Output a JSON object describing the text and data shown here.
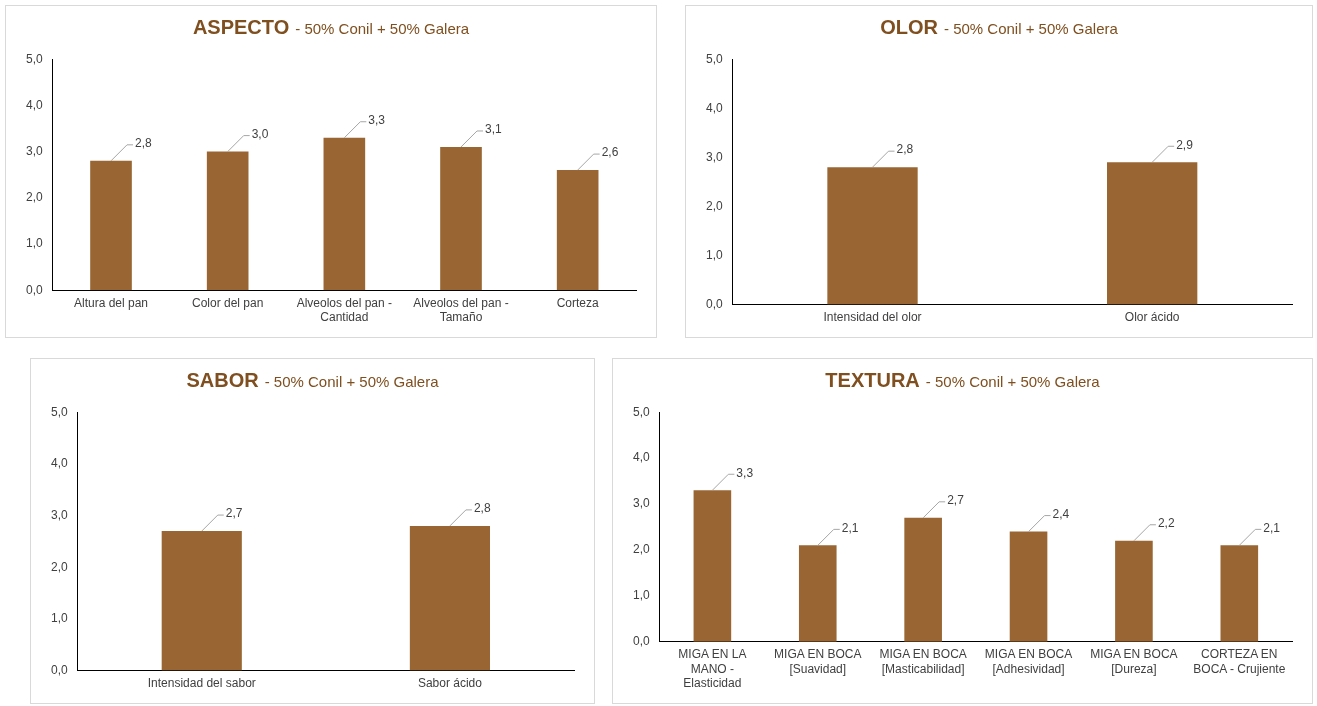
{
  "chart_data": [
    {
      "type": "bar",
      "title": "ASPECTO",
      "subtitle": "- 50% Conil + 50% Galera",
      "categories": [
        "Altura del pan",
        "Color del pan",
        "Alveolos del pan - Cantidad",
        "Alveolos del pan - Tamaño",
        "Corteza"
      ],
      "values": [
        2.8,
        3.0,
        3.3,
        3.1,
        2.6
      ],
      "value_labels": [
        "2,8",
        "3,0",
        "3,3",
        "3,1",
        "2,6"
      ],
      "color": "#996633",
      "ylim": [
        0,
        5
      ],
      "yticks": [
        {
          "value": 0,
          "label": "0,0"
        },
        {
          "value": 1,
          "label": "1,0"
        },
        {
          "value": 2,
          "label": "2,0"
        },
        {
          "value": 3,
          "label": "3,0"
        },
        {
          "value": 4,
          "label": "4,0"
        },
        {
          "value": 5,
          "label": "5,0"
        }
      ],
      "grid": false,
      "legend": false
    },
    {
      "type": "bar",
      "title": "OLOR",
      "subtitle": "- 50% Conil + 50% Galera",
      "categories": [
        "Intensidad del olor",
        "Olor ácido"
      ],
      "values": [
        2.8,
        2.9
      ],
      "value_labels": [
        "2,8",
        "2,9"
      ],
      "color": "#996633",
      "ylim": [
        0,
        5
      ],
      "yticks": [
        {
          "value": 0,
          "label": "0,0"
        },
        {
          "value": 1,
          "label": "1,0"
        },
        {
          "value": 2,
          "label": "2,0"
        },
        {
          "value": 3,
          "label": "3,0"
        },
        {
          "value": 4,
          "label": "4,0"
        },
        {
          "value": 5,
          "label": "5,0"
        }
      ],
      "grid": false,
      "legend": false
    },
    {
      "type": "bar",
      "title": "SABOR",
      "subtitle": "- 50% Conil + 50% Galera",
      "categories": [
        "Intensidad del sabor",
        "Sabor ácido"
      ],
      "values": [
        2.7,
        2.8
      ],
      "value_labels": [
        "2,7",
        "2,8"
      ],
      "color": "#996633",
      "ylim": [
        0,
        5
      ],
      "yticks": [
        {
          "value": 0,
          "label": "0,0"
        },
        {
          "value": 1,
          "label": "1,0"
        },
        {
          "value": 2,
          "label": "2,0"
        },
        {
          "value": 3,
          "label": "3,0"
        },
        {
          "value": 4,
          "label": "4,0"
        },
        {
          "value": 5,
          "label": "5,0"
        }
      ],
      "grid": false,
      "legend": false
    },
    {
      "type": "bar",
      "title": "TEXTURA",
      "subtitle": "- 50% Conil + 50% Galera",
      "categories": [
        "MIGA EN LA MANO - Elasticidad",
        "MIGA EN BOCA [Suavidad]",
        "MIGA EN BOCA [Masticabilidad]",
        "MIGA EN BOCA [Adhesividad]",
        "MIGA EN BOCA [Dureza]",
        "CORTEZA EN BOCA - Crujiente"
      ],
      "values": [
        3.3,
        2.1,
        2.7,
        2.4,
        2.2,
        2.1
      ],
      "value_labels": [
        "3,3",
        "2,1",
        "2,7",
        "2,4",
        "2,2",
        "2,1"
      ],
      "color": "#996633",
      "ylim": [
        0,
        5
      ],
      "yticks": [
        {
          "value": 0,
          "label": "0,0"
        },
        {
          "value": 1,
          "label": "1,0"
        },
        {
          "value": 2,
          "label": "2,0"
        },
        {
          "value": 3,
          "label": "3,0"
        },
        {
          "value": 4,
          "label": "4,0"
        },
        {
          "value": 5,
          "label": "5,0"
        }
      ],
      "grid": false,
      "legend": false
    }
  ]
}
